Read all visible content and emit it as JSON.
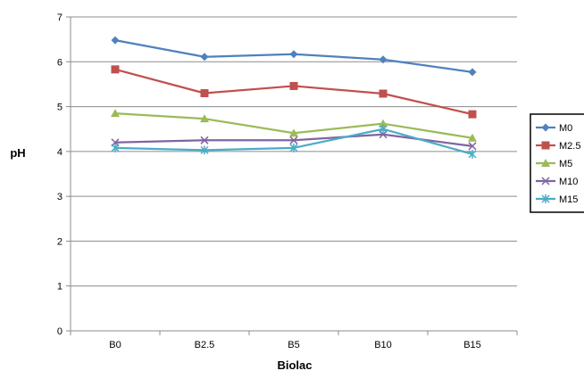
{
  "chart_data": {
    "type": "line",
    "title": "",
    "xlabel": "Biolac",
    "ylabel": "pH",
    "categories": [
      "B0",
      "B2.5",
      "B5",
      "B10",
      "B15"
    ],
    "ylim": [
      0,
      7
    ],
    "yticks": [
      0,
      1,
      2,
      3,
      4,
      5,
      6,
      7
    ],
    "grid": "horizontal",
    "legend_position": "right",
    "series": [
      {
        "name": "M0",
        "color": "#4F81BD",
        "marker": "diamond",
        "values": [
          6.48,
          6.11,
          6.17,
          6.05,
          5.77
        ]
      },
      {
        "name": "M2.5",
        "color": "#C0504D",
        "marker": "square",
        "values": [
          5.83,
          5.3,
          5.46,
          5.29,
          4.83
        ]
      },
      {
        "name": "M5",
        "color": "#9BBB59",
        "marker": "triangle",
        "values": [
          4.85,
          4.73,
          4.41,
          4.62,
          4.3
        ]
      },
      {
        "name": "M10",
        "color": "#8064A2",
        "marker": "x",
        "values": [
          4.2,
          4.25,
          4.25,
          4.38,
          4.12
        ]
      },
      {
        "name": "M15",
        "color": "#4BACC6",
        "marker": "star",
        "values": [
          4.08,
          4.03,
          4.08,
          4.5,
          3.94
        ]
      }
    ]
  }
}
